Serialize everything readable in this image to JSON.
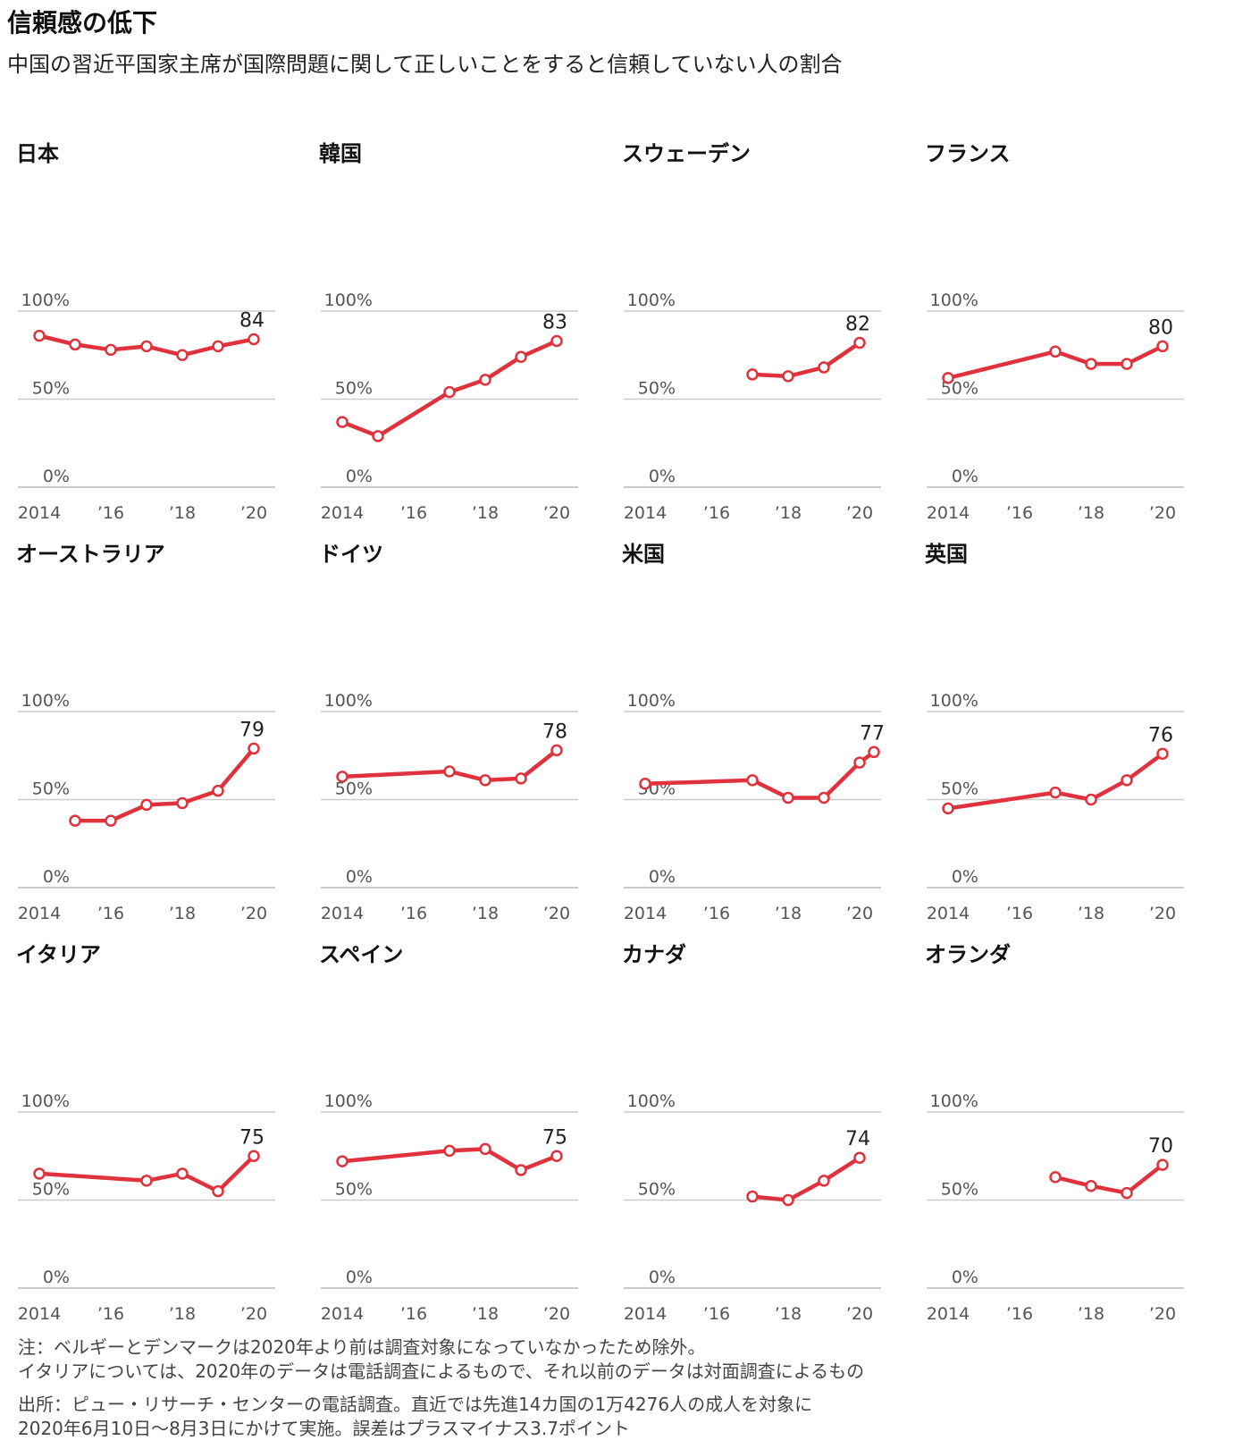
{
  "header": {
    "title": "信頼感の低下",
    "subtitle": "中国の習近平国家主席が国際問題に関して正しいことをすると信頼していない人の割合"
  },
  "axis": {
    "y_ticks": [
      "100%",
      "50%",
      "0%"
    ],
    "x_ticks": [
      "2014",
      "’16",
      "’18",
      "’20"
    ]
  },
  "colors": {
    "line": "#e0323c",
    "grid": "#cccccc",
    "text": "#222222"
  },
  "chart_data": [
    {
      "type": "line",
      "title": "日本",
      "x": [
        2014,
        2015,
        2016,
        2017,
        2018,
        2019,
        2020
      ],
      "values": [
        86,
        81,
        78,
        80,
        75,
        80,
        84
      ],
      "end_label": "84",
      "ylim": [
        0,
        100
      ],
      "xlim": [
        2013.4,
        2020.6
      ],
      "grid": true
    },
    {
      "type": "line",
      "title": "韓国",
      "x": [
        2014,
        2015,
        2017,
        2018,
        2019,
        2020
      ],
      "values": [
        37,
        29,
        54,
        61,
        74,
        83
      ],
      "end_label": "83",
      "ylim": [
        0,
        100
      ],
      "xlim": [
        2013.4,
        2020.6
      ],
      "grid": true
    },
    {
      "type": "line",
      "title": "スウェーデン",
      "x": [
        2017,
        2018,
        2019,
        2020
      ],
      "values": [
        64,
        63,
        68,
        82
      ],
      "end_label": "82",
      "ylim": [
        0,
        100
      ],
      "xlim": [
        2013.4,
        2020.6
      ],
      "grid": true
    },
    {
      "type": "line",
      "title": "フランス",
      "x": [
        2014,
        2017,
        2018,
        2019,
        2020
      ],
      "values": [
        62,
        77,
        70,
        70,
        80
      ],
      "end_label": "80",
      "ylim": [
        0,
        100
      ],
      "xlim": [
        2013.4,
        2020.6
      ],
      "grid": true
    },
    {
      "type": "line",
      "title": "オーストラリア",
      "x": [
        2015,
        2016,
        2017,
        2018,
        2019,
        2020
      ],
      "values": [
        38,
        38,
        47,
        48,
        55,
        79
      ],
      "end_label": "79",
      "ylim": [
        0,
        100
      ],
      "xlim": [
        2013.4,
        2020.6
      ],
      "grid": true
    },
    {
      "type": "line",
      "title": "ドイツ",
      "x": [
        2014,
        2017,
        2018,
        2019,
        2020
      ],
      "values": [
        63,
        66,
        61,
        62,
        78
      ],
      "end_label": "78",
      "ylim": [
        0,
        100
      ],
      "xlim": [
        2013.4,
        2020.6
      ],
      "grid": true
    },
    {
      "type": "line",
      "title": "米国",
      "x": [
        2014,
        2017,
        2018,
        2019,
        2020,
        2020.4
      ],
      "values": [
        59,
        61,
        51,
        51,
        71,
        77
      ],
      "end_label": "77",
      "ylim": [
        0,
        100
      ],
      "xlim": [
        2013.4,
        2020.6
      ],
      "grid": true
    },
    {
      "type": "line",
      "title": "英国",
      "x": [
        2014,
        2017,
        2018,
        2019,
        2020
      ],
      "values": [
        45,
        54,
        50,
        61,
        76
      ],
      "end_label": "76",
      "ylim": [
        0,
        100
      ],
      "xlim": [
        2013.4,
        2020.6
      ],
      "grid": true
    },
    {
      "type": "line",
      "title": "イタリア",
      "x": [
        2014,
        2017,
        2018,
        2019,
        2020
      ],
      "values": [
        65,
        61,
        65,
        55,
        75
      ],
      "end_label": "75",
      "ylim": [
        0,
        100
      ],
      "xlim": [
        2013.4,
        2020.6
      ],
      "grid": true
    },
    {
      "type": "line",
      "title": "スペイン",
      "x": [
        2014,
        2017,
        2018,
        2019,
        2020
      ],
      "values": [
        72,
        78,
        79,
        67,
        75
      ],
      "end_label": "75",
      "ylim": [
        0,
        100
      ],
      "xlim": [
        2013.4,
        2020.6
      ],
      "grid": true
    },
    {
      "type": "line",
      "title": "カナダ",
      "x": [
        2017,
        2018,
        2019,
        2020
      ],
      "values": [
        52,
        50,
        61,
        74
      ],
      "end_label": "74",
      "ylim": [
        0,
        100
      ],
      "xlim": [
        2013.4,
        2020.6
      ],
      "grid": true
    },
    {
      "type": "line",
      "title": "オランダ",
      "x": [
        2017,
        2018,
        2019,
        2020
      ],
      "values": [
        63,
        58,
        54,
        70
      ],
      "end_label": "70",
      "ylim": [
        0,
        100
      ],
      "xlim": [
        2013.4,
        2020.6
      ],
      "grid": true
    }
  ],
  "footer": {
    "note_line1": "注：ベルギーとデンマークは2020年より前は調査対象になっていなかったため除外。",
    "note_line2": "イタリアについては、2020年のデータは電話調査によるもので、それ以前のデータは対面調査によるもの",
    "source_line1": "出所：ピュー・リサーチ・センターの電話調査。直近では先進14カ国の1万4276人の成人を対象に",
    "source_line2": "2020年6月10日～8月3日にかけて実施。誤差はプラスマイナス3.7ポイント"
  }
}
